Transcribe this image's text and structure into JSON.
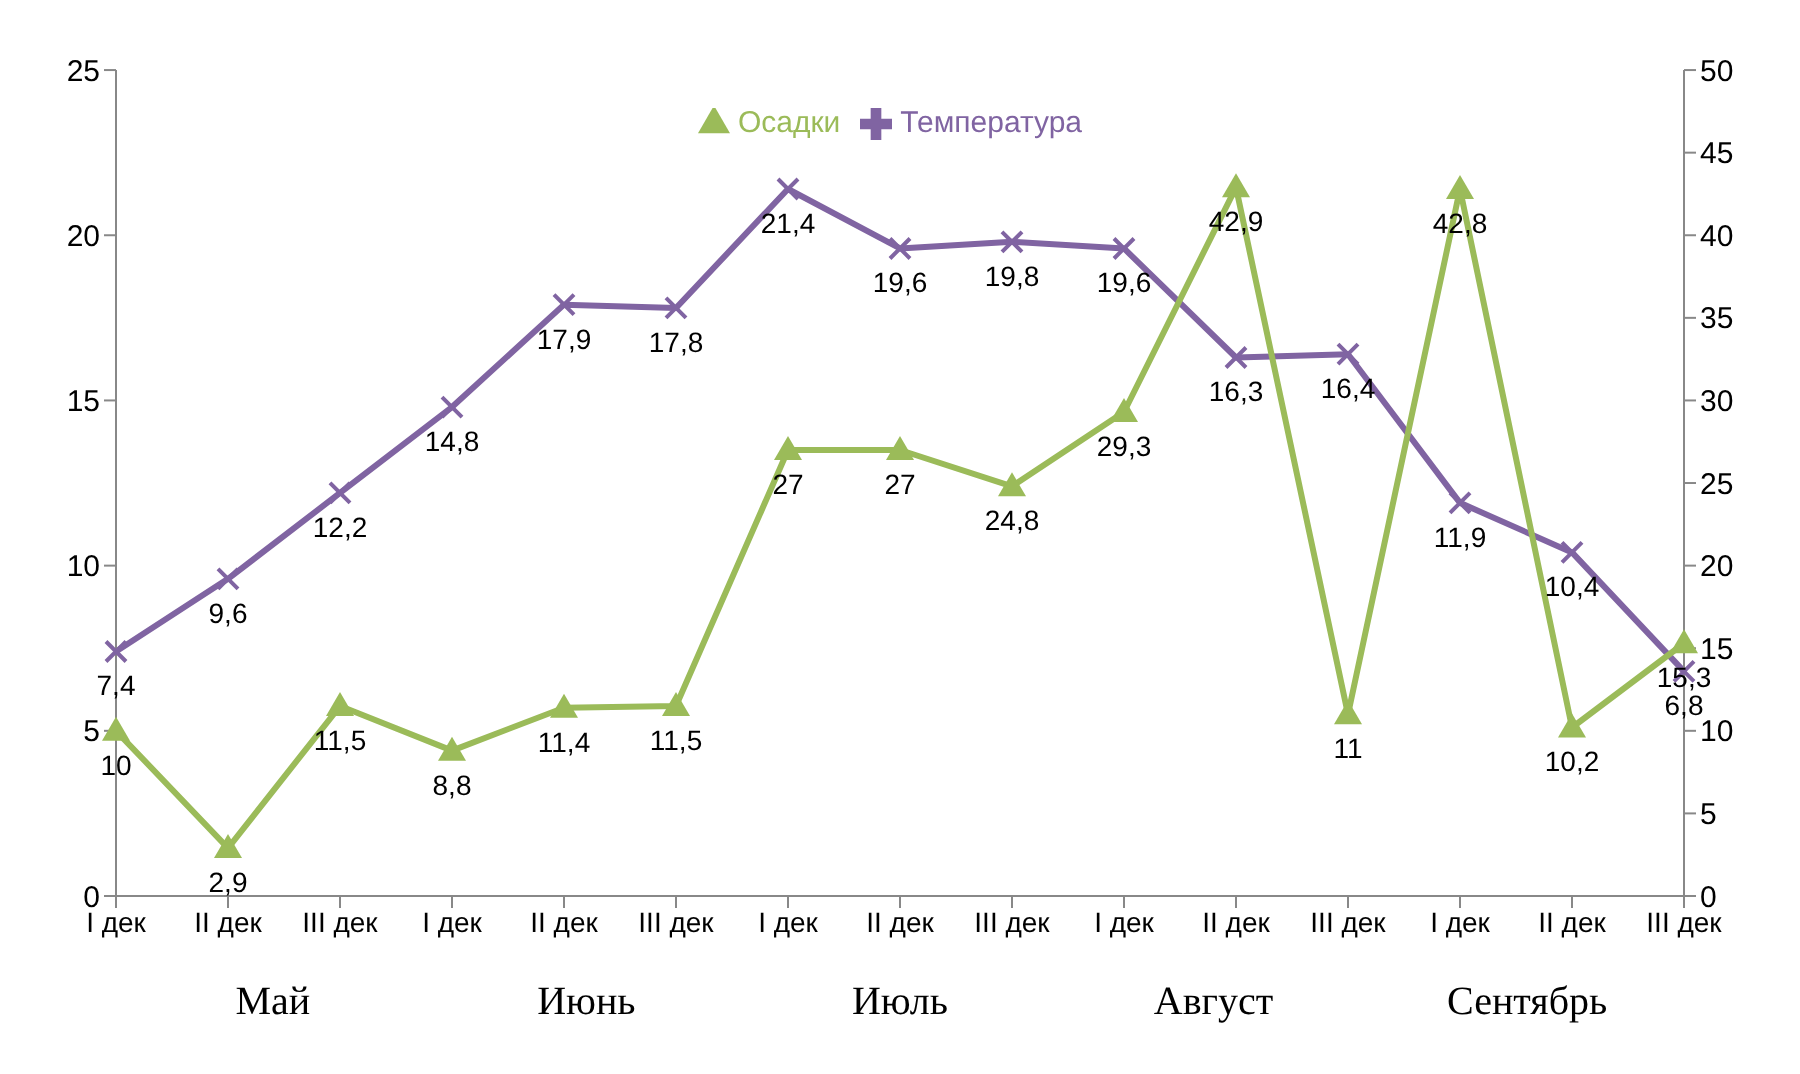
{
  "chart_data": {
    "type": "line",
    "categories": [
      "I дек",
      "II дек",
      "III дек",
      "I дек",
      "II дек",
      "III дек",
      "I дек",
      "II дек",
      "III дек",
      "I дек",
      "II дек",
      "III дек",
      "I дек",
      "II дек",
      "III дек"
    ],
    "series": [
      {
        "name": "Температура",
        "color": "#8064a2",
        "marker": "cross",
        "values": [
          7.4,
          9.6,
          12.2,
          14.8,
          17.9,
          17.8,
          21.4,
          19.6,
          19.8,
          19.6,
          16.3,
          16.4,
          11.9,
          10.4,
          6.8
        ],
        "value_labels": [
          "7,4",
          "9,6",
          "12,2",
          "14,8",
          "17,9",
          "17,8",
          "21,4",
          "19,6",
          "19,8",
          "19,6",
          "16,3",
          "16,4",
          "11,9",
          "10,4",
          "6,8"
        ]
      },
      {
        "name": "Осадки",
        "color": "#9bbb59",
        "marker": "triangle",
        "axis": "y2",
        "values": [
          10,
          2.9,
          11.5,
          8.8,
          11.4,
          11.5,
          27,
          27,
          24.8,
          29.3,
          42.9,
          11,
          42.8,
          10.2,
          15.3
        ],
        "value_labels": [
          "10",
          "2,9",
          "11,5",
          "8,8",
          "11,4",
          "11,5",
          "27",
          "27",
          "24,8",
          "29,3",
          "42,9",
          "11",
          "42,8",
          "10,2",
          "15,3"
        ]
      }
    ],
    "ylim": [
      0,
      25
    ],
    "yticks": [
      0,
      5,
      10,
      15,
      20,
      25
    ],
    "y2lim": [
      0,
      50
    ],
    "y2ticks": [
      0,
      5,
      10,
      15,
      20,
      25,
      30,
      35,
      40,
      45,
      50
    ],
    "grid": false,
    "legend": "top",
    "line_style": "solid",
    "annotations": [
      "Май",
      "Июнь",
      "Июль",
      "Август",
      "Сентябрь"
    ]
  }
}
